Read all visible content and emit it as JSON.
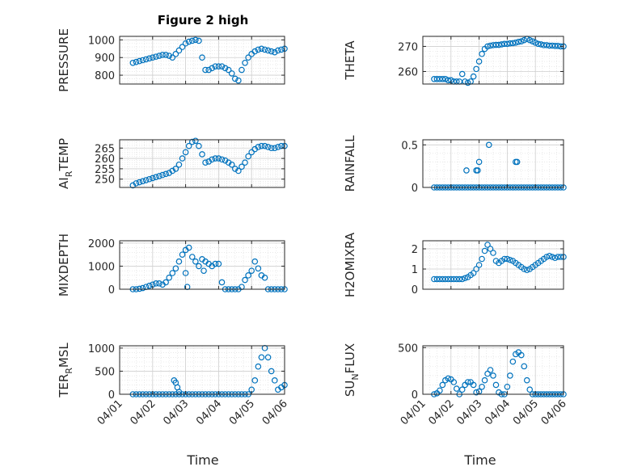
{
  "figure_title": "Figure 2 high",
  "x_axis_label": "Time",
  "x_tick_labels": [
    "04/01",
    "04/02",
    "04/03",
    "04/04",
    "04/05",
    "04/06"
  ],
  "marker_color": "#0072bd",
  "chart_data": [
    {
      "type": "scatter",
      "name": "pressure",
      "title": "Figure 2 high",
      "ylabel": "PRESSURE",
      "xlabel": "",
      "ylim": [
        750,
        1020
      ],
      "yticks": [
        800,
        900,
        1000
      ],
      "xlim": [
        0,
        5
      ],
      "grid": true,
      "x": [
        0.4,
        0.5,
        0.6,
        0.7,
        0.8,
        0.9,
        1.0,
        1.1,
        1.2,
        1.3,
        1.4,
        1.5,
        1.6,
        1.7,
        1.8,
        1.9,
        2.0,
        2.1,
        2.2,
        2.3,
        2.4,
        2.5,
        2.6,
        2.7,
        2.8,
        2.9,
        3.0,
        3.1,
        3.2,
        3.3,
        3.4,
        3.5,
        3.6,
        3.7,
        3.8,
        3.9,
        4.0,
        4.1,
        4.2,
        4.3,
        4.4,
        4.5,
        4.6,
        4.7,
        4.8,
        4.9,
        5.0
      ],
      "y": [
        870,
        875,
        880,
        885,
        890,
        895,
        900,
        905,
        910,
        915,
        915,
        910,
        900,
        920,
        940,
        960,
        980,
        990,
        995,
        1000,
        995,
        900,
        830,
        830,
        840,
        850,
        850,
        850,
        840,
        830,
        810,
        780,
        770,
        830,
        870,
        900,
        920,
        935,
        945,
        950,
        945,
        940,
        935,
        930,
        940,
        945,
        950
      ]
    },
    {
      "type": "scatter",
      "name": "theta",
      "title": "",
      "ylabel": "THETA",
      "xlabel": "",
      "ylim": [
        255,
        274
      ],
      "yticks": [
        260,
        270
      ],
      "xlim": [
        0,
        5
      ],
      "grid": true,
      "x": [
        0.4,
        0.5,
        0.6,
        0.7,
        0.8,
        0.9,
        1.0,
        1.1,
        1.2,
        1.3,
        1.4,
        1.5,
        1.6,
        1.7,
        1.8,
        1.9,
        2.0,
        2.1,
        2.2,
        2.3,
        2.4,
        2.5,
        2.6,
        2.7,
        2.8,
        2.9,
        3.0,
        3.1,
        3.2,
        3.3,
        3.4,
        3.5,
        3.6,
        3.7,
        3.8,
        3.9,
        4.0,
        4.1,
        4.2,
        4.3,
        4.4,
        4.5,
        4.6,
        4.7,
        4.8,
        4.9,
        5.0
      ],
      "y": [
        257,
        257,
        257,
        257,
        257,
        256.5,
        256.5,
        256,
        256,
        256,
        259,
        256,
        255.5,
        256,
        258,
        261,
        264,
        267,
        269,
        270,
        270.3,
        270.5,
        270.6,
        270.6,
        270.8,
        271,
        271,
        271.2,
        271.3,
        271.5,
        271.8,
        272,
        272.5,
        273,
        272.5,
        272,
        271.5,
        271,
        270.8,
        270.5,
        270.5,
        270.3,
        270.3,
        270.2,
        270.2,
        270,
        270
      ]
    },
    {
      "type": "scatter",
      "name": "air_temp",
      "title": "",
      "ylabel": "AIR_TEMP",
      "xlabel": "",
      "ylim": [
        246,
        269
      ],
      "yticks": [
        250,
        255,
        260,
        265
      ],
      "xlim": [
        0,
        5
      ],
      "grid": true,
      "x": [
        0.4,
        0.5,
        0.6,
        0.7,
        0.8,
        0.9,
        1.0,
        1.1,
        1.2,
        1.3,
        1.4,
        1.5,
        1.6,
        1.7,
        1.8,
        1.9,
        2.0,
        2.1,
        2.2,
        2.3,
        2.4,
        2.5,
        2.6,
        2.7,
        2.8,
        2.9,
        3.0,
        3.1,
        3.2,
        3.3,
        3.4,
        3.5,
        3.6,
        3.7,
        3.8,
        3.9,
        4.0,
        4.1,
        4.2,
        4.3,
        4.4,
        4.5,
        4.6,
        4.7,
        4.8,
        4.9,
        5.0
      ],
      "y": [
        247,
        248,
        248.5,
        249,
        249.5,
        250,
        250.5,
        251,
        251.5,
        252,
        252.5,
        253,
        254,
        255,
        257,
        260,
        263,
        266,
        268,
        268.5,
        266,
        262,
        258,
        258.5,
        259.5,
        260,
        260,
        259.5,
        259,
        258,
        257,
        255,
        254,
        256,
        258,
        261,
        263,
        264.5,
        265.5,
        266,
        266,
        265.5,
        265,
        265,
        265.5,
        266,
        266
      ]
    },
    {
      "type": "scatter",
      "name": "rainfall",
      "title": "",
      "ylabel": "RAINFALL",
      "xlabel": "",
      "ylim": [
        0,
        0.56
      ],
      "yticks": [
        0,
        0.5
      ],
      "xlim": [
        0,
        5
      ],
      "grid": true,
      "x": [
        0.4,
        0.5,
        0.6,
        0.7,
        0.8,
        0.9,
        1.0,
        1.1,
        1.2,
        1.3,
        1.4,
        1.5,
        1.6,
        1.7,
        1.8,
        1.9,
        2.0,
        2.1,
        2.2,
        2.3,
        2.4,
        2.5,
        2.6,
        2.7,
        2.8,
        2.9,
        3.0,
        3.1,
        3.2,
        3.3,
        3.4,
        3.5,
        3.6,
        3.7,
        3.8,
        3.9,
        4.0,
        4.1,
        4.2,
        4.3,
        4.4,
        4.5,
        4.6,
        4.7,
        4.8,
        4.9,
        5.0,
        1.55,
        1.9,
        1.95,
        2.0,
        2.35,
        3.3,
        3.35
      ],
      "y": [
        0,
        0,
        0,
        0,
        0,
        0,
        0,
        0,
        0,
        0,
        0,
        0,
        0,
        0,
        0,
        0,
        0,
        0,
        0,
        0,
        0,
        0,
        0,
        0,
        0,
        0,
        0,
        0,
        0,
        0,
        0,
        0,
        0,
        0,
        0,
        0,
        0,
        0,
        0,
        0,
        0,
        0,
        0,
        0,
        0,
        0,
        0,
        0.2,
        0.2,
        0.2,
        0.3,
        0.5,
        0.3,
        0.3
      ]
    },
    {
      "type": "scatter",
      "name": "mixdepth",
      "title": "",
      "ylabel": "MIXDEPTH",
      "xlabel": "",
      "ylim": [
        0,
        2100
      ],
      "yticks": [
        0,
        1000,
        2000
      ],
      "xlim": [
        0,
        5
      ],
      "grid": true,
      "x": [
        0.4,
        0.5,
        0.6,
        0.7,
        0.8,
        0.9,
        1.0,
        1.1,
        1.2,
        1.3,
        1.4,
        1.5,
        1.6,
        1.7,
        1.8,
        1.9,
        2.0,
        2.1,
        2.2,
        2.3,
        2.4,
        2.5,
        2.6,
        2.7,
        2.8,
        2.9,
        3.0,
        3.1,
        3.2,
        3.3,
        3.4,
        3.5,
        3.6,
        3.7,
        3.8,
        3.9,
        4.0,
        4.1,
        4.2,
        4.3,
        4.4,
        4.5,
        4.6,
        4.7,
        4.8,
        4.9,
        5.0,
        2.0,
        2.05,
        2.55
      ],
      "y": [
        0,
        0,
        20,
        50,
        100,
        150,
        200,
        250,
        250,
        200,
        300,
        500,
        700,
        900,
        1200,
        1500,
        1700,
        1800,
        1400,
        1200,
        1000,
        1300,
        1200,
        1100,
        1000,
        1100,
        1100,
        300,
        0,
        0,
        0,
        0,
        0,
        100,
        400,
        600,
        800,
        1200,
        900,
        600,
        500,
        0,
        0,
        0,
        0,
        0,
        0,
        700,
        100,
        800
      ]
    },
    {
      "type": "scatter",
      "name": "h2omixra",
      "title": "",
      "ylabel": "H2OMIXRA",
      "xlabel": "",
      "ylim": [
        0,
        2.4
      ],
      "yticks": [
        0,
        1,
        2
      ],
      "xlim": [
        0,
        5
      ],
      "grid": true,
      "x": [
        0.4,
        0.5,
        0.6,
        0.7,
        0.8,
        0.9,
        1.0,
        1.1,
        1.2,
        1.3,
        1.4,
        1.5,
        1.6,
        1.7,
        1.8,
        1.9,
        2.0,
        2.1,
        2.2,
        2.3,
        2.4,
        2.5,
        2.6,
        2.7,
        2.8,
        2.9,
        3.0,
        3.1,
        3.2,
        3.3,
        3.4,
        3.5,
        3.6,
        3.7,
        3.8,
        3.9,
        4.0,
        4.1,
        4.2,
        4.3,
        4.4,
        4.5,
        4.6,
        4.7,
        4.8,
        4.9,
        5.0
      ],
      "y": [
        0.5,
        0.5,
        0.5,
        0.5,
        0.5,
        0.5,
        0.5,
        0.5,
        0.5,
        0.5,
        0.5,
        0.55,
        0.6,
        0.7,
        0.8,
        1.0,
        1.2,
        1.5,
        1.9,
        2.2,
        2.0,
        1.8,
        1.4,
        1.3,
        1.4,
        1.5,
        1.5,
        1.45,
        1.4,
        1.3,
        1.2,
        1.1,
        1.0,
        0.95,
        1.0,
        1.1,
        1.2,
        1.3,
        1.4,
        1.5,
        1.6,
        1.65,
        1.6,
        1.55,
        1.6,
        1.6,
        1.6
      ]
    },
    {
      "type": "scatter",
      "name": "terr_msl",
      "title": "",
      "ylabel": "TERR_MSL",
      "xlabel": "Time",
      "ylim": [
        0,
        1050
      ],
      "yticks": [
        0,
        500,
        1000
      ],
      "xlim": [
        0,
        5
      ],
      "grid": true,
      "x": [
        0.4,
        0.5,
        0.6,
        0.7,
        0.8,
        0.9,
        1.0,
        1.1,
        1.2,
        1.3,
        1.4,
        1.5,
        1.6,
        1.7,
        1.8,
        1.9,
        2.0,
        2.1,
        2.2,
        2.3,
        2.4,
        2.5,
        2.6,
        2.7,
        2.8,
        2.9,
        3.0,
        3.1,
        3.2,
        3.3,
        3.4,
        3.5,
        3.6,
        3.7,
        3.8,
        3.9,
        4.0,
        4.1,
        4.2,
        4.3,
        4.4,
        4.5,
        4.6,
        4.7,
        4.8,
        4.9,
        5.0,
        1.65,
        1.7,
        1.75,
        1.8
      ],
      "y": [
        0,
        0,
        0,
        0,
        0,
        0,
        0,
        0,
        0,
        0,
        0,
        0,
        0,
        0,
        0,
        0,
        0,
        0,
        0,
        0,
        0,
        0,
        0,
        0,
        0,
        0,
        0,
        0,
        0,
        0,
        0,
        0,
        0,
        0,
        0,
        0,
        100,
        300,
        600,
        800,
        1000,
        800,
        500,
        300,
        100,
        150,
        200,
        300,
        250,
        150,
        50
      ]
    },
    {
      "type": "scatter",
      "name": "sun_flux",
      "title": "",
      "ylabel": "SUN_FLUX",
      "xlabel": "Time",
      "ylim": [
        0,
        520
      ],
      "yticks": [
        0,
        500
      ],
      "xlim": [
        0,
        5
      ],
      "grid": true,
      "x": [
        0.4,
        0.5,
        0.6,
        0.7,
        0.8,
        0.9,
        1.0,
        1.1,
        1.2,
        1.3,
        1.4,
        1.5,
        1.6,
        1.7,
        1.8,
        1.9,
        2.0,
        2.1,
        2.2,
        2.3,
        2.4,
        2.5,
        2.6,
        2.7,
        2.8,
        2.9,
        3.0,
        3.1,
        3.2,
        3.3,
        3.4,
        3.5,
        3.6,
        3.7,
        3.8,
        3.9,
        4.0,
        4.1,
        4.2,
        4.3,
        4.4,
        4.5,
        4.6,
        4.7,
        4.8,
        4.9,
        5.0
      ],
      "y": [
        0,
        10,
        40,
        100,
        150,
        170,
        160,
        130,
        60,
        0,
        50,
        100,
        130,
        130,
        100,
        20,
        30,
        80,
        150,
        220,
        260,
        200,
        100,
        20,
        0,
        0,
        80,
        200,
        350,
        430,
        450,
        420,
        300,
        150,
        50,
        0,
        0,
        0,
        0,
        0,
        0,
        0,
        0,
        0,
        0,
        0,
        0
      ]
    }
  ]
}
